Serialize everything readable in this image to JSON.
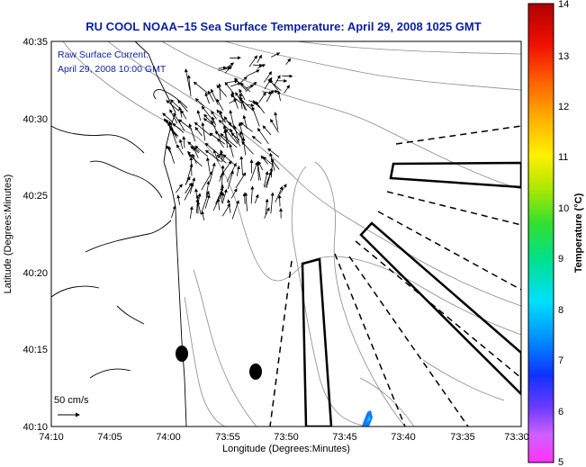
{
  "title": "RU COOL  NOAA−15  Sea Surface Temperature:  April 29, 2008 1025 GMT",
  "annotation": {
    "line1": "Raw Surface Current:",
    "line2": "April 29, 2008 10:00 GMT"
  },
  "scale_label": "50 cm/s",
  "axes": {
    "xlabel": "Longitude (Degrees:Minutes)",
    "ylabel": "Latitude (Degrees:Minutes)",
    "x_ticks": [
      "74:10",
      "74:05",
      "74:00",
      "73:55",
      "73:50",
      "73:45",
      "73:40",
      "73:35",
      "73:30"
    ],
    "y_ticks": [
      "40:35",
      "40:30",
      "40:25",
      "40:20",
      "40:15",
      "40:10"
    ]
  },
  "colorbar": {
    "title": "Temperature (°C)",
    "ticks": [
      "14",
      "13",
      "12",
      "11",
      "10",
      "9",
      "8",
      "7",
      "6",
      "5"
    ],
    "min": 5,
    "max": 14
  },
  "colors": {
    "title": "#0b1fa0",
    "annotation": "#0b1fa0"
  }
}
